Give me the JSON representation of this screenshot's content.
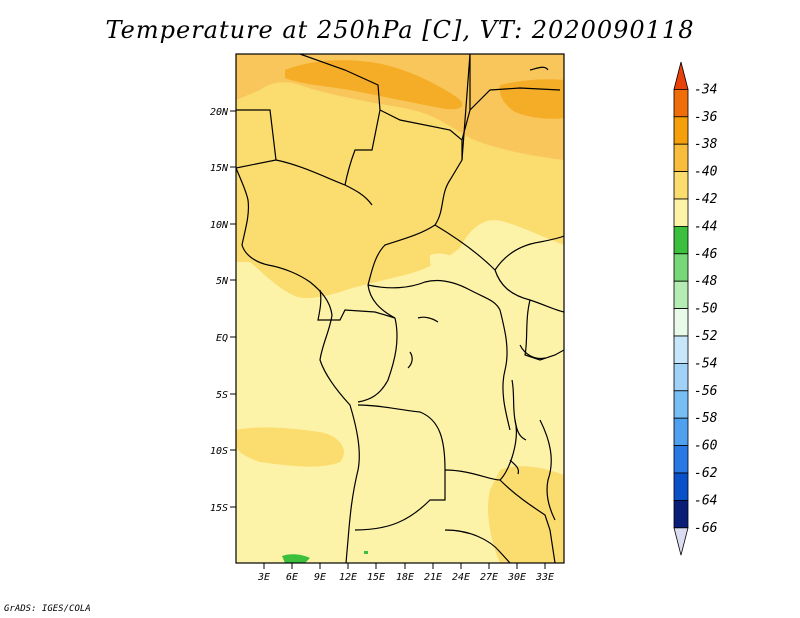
{
  "title": "Temperature at 250hPa [C], VT: 2020090118",
  "credit": "GrADS: IGES/COLA",
  "map": {
    "lon_ticks": [
      "3E",
      "6E",
      "9E",
      "12E",
      "15E",
      "18E",
      "21E",
      "24E",
      "27E",
      "30E",
      "33E"
    ],
    "lat_ticks": [
      "20N",
      "15N",
      "10N",
      "5N",
      "EQ",
      "5S",
      "10S",
      "15S"
    ]
  },
  "colorbar": {
    "levels": [
      "-34",
      "-36",
      "-38",
      "-40",
      "-42",
      "-44",
      "-46",
      "-48",
      "-50",
      "-52",
      "-54",
      "-56",
      "-58",
      "-60",
      "-62",
      "-64",
      "-66"
    ],
    "colors": [
      "#e8410a",
      "#f06e0a",
      "#f5a00a",
      "#f8bd3c",
      "#fbdc6e",
      "#fdf3a8",
      "#3cbf3c",
      "#78d878",
      "#b4ecb4",
      "#e8fae8",
      "#c8e6fa",
      "#a0d2f8",
      "#78bef5",
      "#50a0f0",
      "#2878e6",
      "#0a50c8",
      "#0a1e78",
      "#dcdcf0"
    ],
    "colors_note": "top arrow (>-34) through bottom arrow (<-66)"
  }
}
